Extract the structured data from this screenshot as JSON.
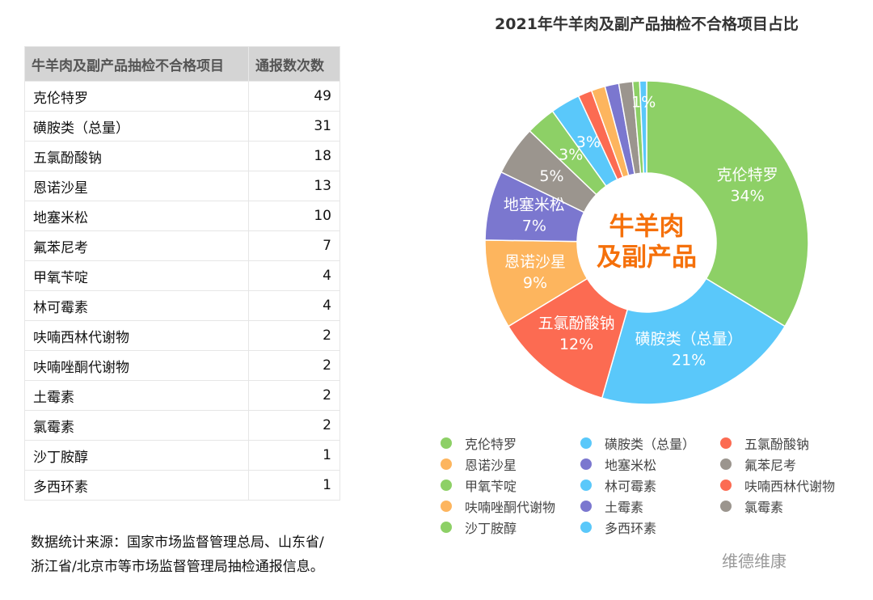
{
  "table": {
    "header": [
      "牛羊肉及副产品抽检不合格项目",
      "通报数次数"
    ],
    "rows": [
      [
        "克伦特罗",
        49
      ],
      [
        "磺胺类（总量）",
        31
      ],
      [
        "五氯酚酸钠",
        18
      ],
      [
        "恩诺沙星",
        13
      ],
      [
        "地塞米松",
        10
      ],
      [
        "氟苯尼考",
        7
      ],
      [
        "甲氧苄啶",
        4
      ],
      [
        "林可霉素",
        4
      ],
      [
        "呋喃西林代谢物",
        2
      ],
      [
        "呋喃唑酮代谢物",
        2
      ],
      [
        "土霉素",
        2
      ],
      [
        "氯霉素",
        2
      ],
      [
        "沙丁胺醇",
        1
      ],
      [
        "多西环素",
        1
      ]
    ]
  },
  "source_note": [
    "数据统计来源：国家市场监督管理总局、山东省/",
    "浙江省/北京市等市场监督管理局抽检通报信息。"
  ],
  "watermark": "维德维康",
  "chart_data": {
    "type": "pie",
    "title": "2021年牛羊肉及副产品抽检不合格项目占比",
    "center_label": [
      "牛羊肉",
      "及副产品"
    ],
    "categories": [
      "克伦特罗",
      "磺胺类（总量）",
      "五氯酚酸钠",
      "恩诺沙星",
      "地塞米松",
      "氟苯尼考",
      "甲氧苄啶",
      "林可霉素",
      "呋喃西林代谢物",
      "呋喃唑酮代谢物",
      "土霉素",
      "氯霉素",
      "沙丁胺醇",
      "多西环素"
    ],
    "values": [
      34,
      21,
      12,
      9,
      7,
      5,
      3,
      3,
      1.4,
      1.4,
      1.4,
      1.4,
      0.7,
      0.7
    ],
    "value_labels": [
      "34%",
      "21%",
      "12%",
      "9%",
      "7%",
      "5%",
      "3%",
      "3%",
      null,
      null,
      null,
      null,
      null,
      "1%"
    ],
    "colors": [
      "#8dd066",
      "#5ac8fa",
      "#fc6b52",
      "#fdb55e",
      "#7b77cf",
      "#9b958e",
      "#8dd066",
      "#5ac8fa",
      "#fc6b52",
      "#fdb55e",
      "#7b77cf",
      "#9b958e",
      "#8dd066",
      "#5ac8fa"
    ],
    "legend": "bottom"
  }
}
